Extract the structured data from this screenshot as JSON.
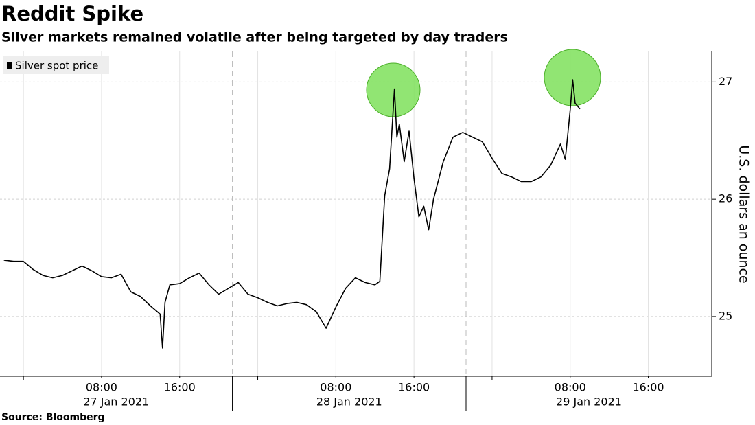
{
  "chart_data": {
    "type": "line",
    "title": "Reddit Spike",
    "subtitle": "Silver markets remained volatile after being targeted by day traders",
    "source": "Source: Bloomberg",
    "ylabel": "U.S. dollars an ounce",
    "legend": "top-left",
    "grid": true,
    "series": [
      {
        "name": "Silver spot price",
        "color": "#000000",
        "x": [
          "2021-01-26T22:00",
          "2021-01-26T23:00",
          "2021-01-27T00:00",
          "2021-01-27T01:00",
          "2021-01-27T02:00",
          "2021-01-27T03:00",
          "2021-01-27T04:00",
          "2021-01-27T05:00",
          "2021-01-27T06:00",
          "2021-01-27T07:00",
          "2021-01-27T08:00",
          "2021-01-27T09:00",
          "2021-01-27T10:00",
          "2021-01-27T11:00",
          "2021-01-27T12:00",
          "2021-01-27T13:00",
          "2021-01-27T14:00",
          "2021-01-27T14:15",
          "2021-01-27T14:30",
          "2021-01-27T15:00",
          "2021-01-27T16:00",
          "2021-01-27T17:00",
          "2021-01-27T18:00",
          "2021-01-27T19:00",
          "2021-01-27T20:00",
          "2021-01-27T21:00",
          "2021-01-27T22:00",
          "2021-01-27T23:00",
          "2021-01-28T00:00",
          "2021-01-28T01:00",
          "2021-01-28T02:00",
          "2021-01-28T03:00",
          "2021-01-28T04:00",
          "2021-01-28T05:00",
          "2021-01-28T06:00",
          "2021-01-28T07:00",
          "2021-01-28T08:00",
          "2021-01-28T09:00",
          "2021-01-28T10:00",
          "2021-01-28T11:00",
          "2021-01-28T12:00",
          "2021-01-28T12:30",
          "2021-01-28T13:00",
          "2021-01-28T13:30",
          "2021-01-28T14:00",
          "2021-01-28T14:15",
          "2021-01-28T14:30",
          "2021-01-28T15:00",
          "2021-01-28T15:30",
          "2021-01-28T16:00",
          "2021-01-28T16:30",
          "2021-01-28T17:00",
          "2021-01-28T17:30",
          "2021-01-28T18:00",
          "2021-01-28T19:00",
          "2021-01-28T20:00",
          "2021-01-28T21:00",
          "2021-01-28T22:00",
          "2021-01-28T23:00",
          "2021-01-29T00:00",
          "2021-01-29T01:00",
          "2021-01-29T02:00",
          "2021-01-29T03:00",
          "2021-01-29T04:00",
          "2021-01-29T05:00",
          "2021-01-29T06:00",
          "2021-01-29T07:00",
          "2021-01-29T07:30",
          "2021-01-29T08:00",
          "2021-01-29T08:15",
          "2021-01-29T08:30",
          "2021-01-29T09:00"
        ],
        "values": [
          25.48,
          25.47,
          25.47,
          25.4,
          25.35,
          25.33,
          25.35,
          25.39,
          25.43,
          25.39,
          25.34,
          25.33,
          25.36,
          25.21,
          25.17,
          25.09,
          25.02,
          24.73,
          25.12,
          25.27,
          25.28,
          25.33,
          25.37,
          25.27,
          25.19,
          25.24,
          25.29,
          25.19,
          25.16,
          25.12,
          25.09,
          25.11,
          25.12,
          25.1,
          25.04,
          24.9,
          25.08,
          25.24,
          25.33,
          25.29,
          25.27,
          25.3,
          26.03,
          26.26,
          26.94,
          26.53,
          26.64,
          26.32,
          26.58,
          26.18,
          25.85,
          25.94,
          25.74,
          26.0,
          26.32,
          26.53,
          26.57,
          26.53,
          26.49,
          26.35,
          26.22,
          26.19,
          26.15,
          26.15,
          26.19,
          26.29,
          26.47,
          26.34,
          26.76,
          27.02,
          26.82,
          26.77
        ]
      }
    ],
    "xlim": [
      "2021-01-26T21:36",
      "2021-01-29T22:30"
    ],
    "xticks": [
      {
        "value": "2021-01-27T00:00",
        "label": null
      },
      {
        "value": "2021-01-27T08:00",
        "label": "08:00"
      },
      {
        "value": "2021-01-27T16:00",
        "label": "16:00"
      },
      {
        "value": "2021-01-28T00:00",
        "label": null
      },
      {
        "value": "2021-01-28T08:00",
        "label": "08:00"
      },
      {
        "value": "2021-01-28T16:00",
        "label": "16:00"
      },
      {
        "value": "2021-01-29T00:00",
        "label": null
      },
      {
        "value": "2021-01-29T08:00",
        "label": "08:00"
      },
      {
        "value": "2021-01-29T16:00",
        "label": "16:00"
      }
    ],
    "day_breaks": [
      "2021-01-27T21:24",
      "2021-01-28T21:20"
    ],
    "dates": [
      "27 Jan 2021",
      "28 Jan 2021",
      "29 Jan 2021"
    ],
    "ylim": [
      24.49,
      27.26
    ],
    "yticks": [
      25,
      26,
      27
    ]
  }
}
